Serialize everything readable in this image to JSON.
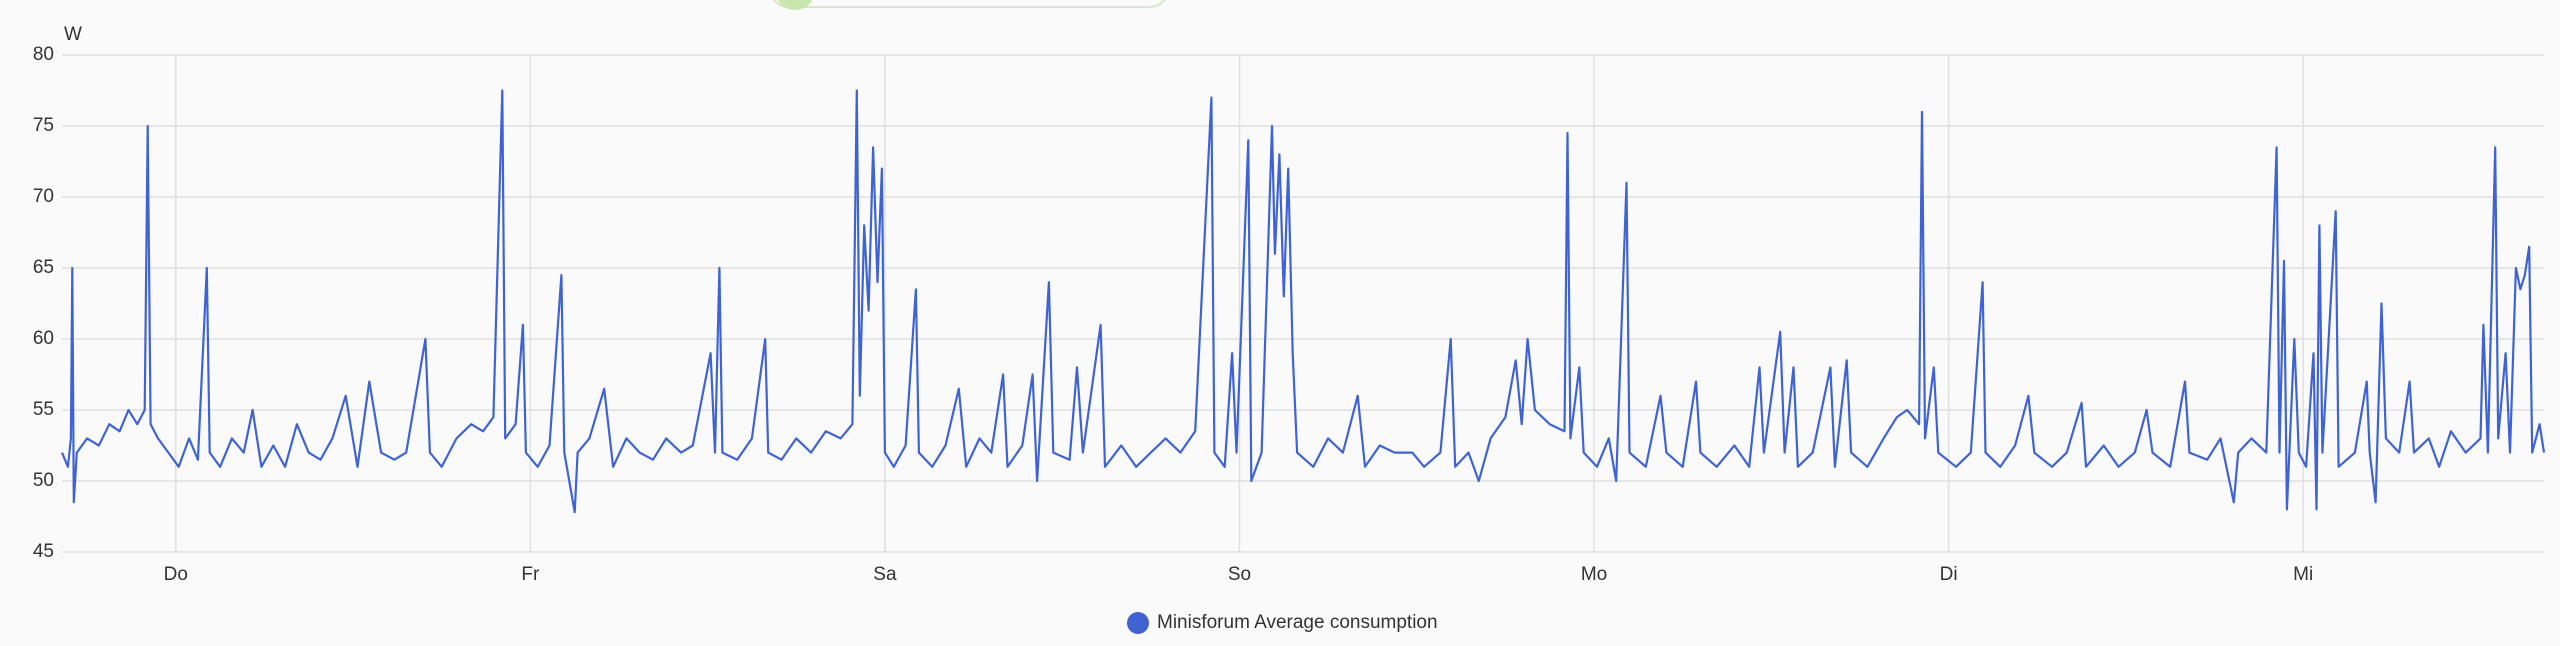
{
  "chart_data": {
    "type": "line",
    "y_label": "W",
    "x": [
      -7.7,
      -7.3,
      -7.1,
      -7.0,
      -6.9,
      -6.7,
      -6.0,
      -5.2,
      -4.5,
      -3.8,
      -3.2,
      -2.6,
      -2.1,
      -1.9,
      -1.7,
      -1.2,
      -0.5,
      0.2,
      0.9,
      1.5,
      2.1,
      2.3,
      3.0,
      3.8,
      4.6,
      5.2,
      5.8,
      6.6,
      7.4,
      8.2,
      9.0,
      9.8,
      10.6,
      11.5,
      12.3,
      13.1,
      13.9,
      14.8,
      15.6,
      16.9,
      17.2,
      18.0,
      19.0,
      20.0,
      20.8,
      21.5,
      22.1,
      22.3,
      23.0,
      23.5,
      23.7,
      24.5,
      25.3,
      26.1,
      26.3,
      27.0,
      27.2,
      28.0,
      29.0,
      29.6,
      30.5,
      31.4,
      32.3,
      33.2,
      34.2,
      35.0,
      36.2,
      36.5,
      36.8,
      37.0,
      38.0,
      39.0,
      39.9,
      40.1,
      41.0,
      42.0,
      43.0,
      44.0,
      45.0,
      45.8,
      46.1,
      46.3,
      46.6,
      46.9,
      47.2,
      47.5,
      47.8,
      48.0,
      48.6,
      49.4,
      50.1,
      50.3,
      51.2,
      52.1,
      53.0,
      53.5,
      54.4,
      55.2,
      56.0,
      56.3,
      57.3,
      58.0,
      58.3,
      59.1,
      59.4,
      60.5,
      61.0,
      61.4,
      62.6,
      62.9,
      64.0,
      65.0,
      66.0,
      67.0,
      68.0,
      69.0,
      70.1,
      70.3,
      71.0,
      71.5,
      71.8,
      72.6,
      72.8,
      73.5,
      74.2,
      74.4,
      74.7,
      75.0,
      75.3,
      75.6,
      75.9,
      77.0,
      78.0,
      79.0,
      80.0,
      80.5,
      81.5,
      82.5,
      83.7,
      84.5,
      85.6,
      86.3,
      86.6,
      87.5,
      88.2,
      89.0,
      90.0,
      90.7,
      91.1,
      91.5,
      92.0,
      93.0,
      94.0,
      94.2,
      94.4,
      95.0,
      95.3,
      96.2,
      97.0,
      97.5,
      98.2,
      98.4,
      99.5,
      100.5,
      100.9,
      102.0,
      102.9,
      103.2,
      104.3,
      105.5,
      106.5,
      107.2,
      107.5,
      108.6,
      108.9,
      109.5,
      109.8,
      110.8,
      112.0,
      112.3,
      113.1,
      113.4,
      114.5,
      115.6,
      116.5,
      117.2,
      118.0,
      118.2,
      118.4,
      119.0,
      119.3,
      120.5,
      121.5,
      122.3,
      122.5,
      123.5,
      124.5,
      125.4,
      125.8,
      127.0,
      128.0,
      129.0,
      129.3,
      130.5,
      131.5,
      132.6,
      133.4,
      133.8,
      135.0,
      136.0,
      136.3,
      137.5,
      138.4,
      139.3,
      139.6,
      140.5,
      141.5,
      142.2,
      142.4,
      142.7,
      142.9,
      143.4,
      143.7,
      144.2,
      144.7,
      144.9,
      145.1,
      145.3,
      146.2,
      146.4,
      147.5,
      148.3,
      148.5,
      148.9,
      149.3,
      149.6,
      150.5,
      151.2,
      151.5,
      152.5,
      153.2,
      154.0,
      155.0,
      156.0,
      156.2,
      156.5,
      157.0,
      157.2,
      157.7,
      158.0,
      158.4,
      158.7,
      159.0,
      159.3,
      159.5,
      160.0,
      160.3
    ],
    "series": [
      {
        "name": "Minisforum Average consumption",
        "color": "#3f63d3",
        "values": [
          52,
          51,
          53,
          65,
          48.5,
          52,
          53,
          52.5,
          54,
          53.5,
          55,
          54,
          55,
          75,
          54,
          53,
          52,
          51,
          53,
          51.5,
          65,
          52,
          51,
          53,
          52,
          55,
          51,
          52.5,
          51,
          54,
          52,
          51.5,
          53,
          56,
          51,
          57,
          52,
          51.5,
          52,
          60,
          52,
          51,
          53,
          54,
          53.5,
          54.5,
          77.5,
          53,
          54,
          61,
          52,
          51,
          52.5,
          64.5,
          52,
          47.8,
          52,
          53,
          56.5,
          51,
          53,
          52,
          51.5,
          53,
          52,
          52.5,
          59,
          52,
          65,
          52,
          51.5,
          53,
          60,
          52,
          51.5,
          53,
          52,
          53.5,
          53,
          54,
          77.5,
          56,
          68,
          62,
          73.5,
          64,
          72,
          52,
          51,
          52.5,
          63.5,
          52,
          51,
          52.5,
          56.5,
          51,
          53,
          52,
          57.5,
          51,
          52.5,
          57.5,
          50,
          64,
          52,
          51.5,
          58,
          52,
          61,
          51,
          52.5,
          51,
          52,
          53,
          52,
          53.5,
          77,
          52,
          51,
          59,
          52,
          74,
          50,
          52,
          75,
          66,
          73,
          63,
          72,
          59,
          52,
          51,
          53,
          52,
          56,
          51,
          52.5,
          52,
          52,
          51,
          52,
          60,
          51,
          52,
          50,
          53,
          54.5,
          58.5,
          54,
          60,
          55,
          54,
          53.5,
          74.5,
          53,
          58,
          52,
          51,
          53,
          50,
          71,
          52,
          51,
          56,
          52,
          51,
          57,
          52,
          51,
          52.5,
          51,
          58,
          52,
          60.5,
          52,
          58,
          51,
          52,
          58,
          51,
          58.5,
          52,
          51,
          53,
          54.5,
          55,
          54,
          76,
          53,
          58,
          52,
          51,
          52,
          64,
          52,
          51,
          52.5,
          56,
          52,
          51,
          52,
          55.5,
          51,
          52.5,
          51,
          52,
          55,
          52,
          51,
          57,
          52,
          51.5,
          53,
          48.5,
          52,
          53,
          52,
          73.5,
          52,
          65.5,
          48,
          60,
          52,
          51,
          59,
          48,
          68,
          52,
          69,
          51,
          52,
          57,
          52,
          48.5,
          62.5,
          53,
          52,
          57,
          52,
          53,
          51,
          53.5,
          52,
          53,
          61,
          52,
          73.5,
          53,
          59,
          52,
          65,
          63.5,
          64.5,
          66.5,
          52,
          54,
          52
        ]
      }
    ],
    "xlim": [
      -7.7,
      160.3
    ],
    "xticks": [
      {
        "value": 0,
        "label": "Do"
      },
      {
        "value": 24,
        "label": "Fr"
      },
      {
        "value": 48,
        "label": "Sa"
      },
      {
        "value": 72,
        "label": "So"
      },
      {
        "value": 96,
        "label": "Mo"
      },
      {
        "value": 120,
        "label": "Di"
      },
      {
        "value": 144,
        "label": "Mi"
      }
    ],
    "ylim": [
      45,
      80
    ],
    "yticks": [
      45,
      50,
      55,
      60,
      65,
      70,
      75,
      80
    ],
    "grid": true
  }
}
